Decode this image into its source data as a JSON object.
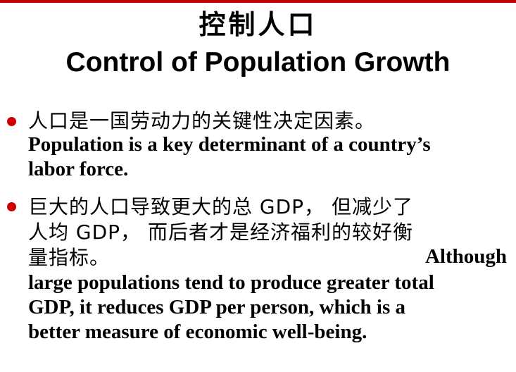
{
  "slide": {
    "title_zh": "控制人口",
    "title_en": "Control of Population Growth",
    "bullets": [
      {
        "zh_lines": [
          "人口是一国劳动力的关键性决定因素。"
        ],
        "en_lines": [
          "Population is a key determinant of a country’s",
          "labor force."
        ]
      },
      {
        "zh_lines": [
          "巨大的人口导致更大的总 GDP， 但减少了",
          "人均 GDP， 而后者才是经济福利的较好衡",
          "量指标。"
        ],
        "en_inline": "Although",
        "en_lines": [
          "large populations tend to produce greater total",
          "GDP, it reduces GDP per person, which is a",
          "better measure of economic well-being."
        ]
      }
    ]
  },
  "colors": {
    "accent": "#cc0000",
    "text": "#000000",
    "background": "#ffffff"
  }
}
